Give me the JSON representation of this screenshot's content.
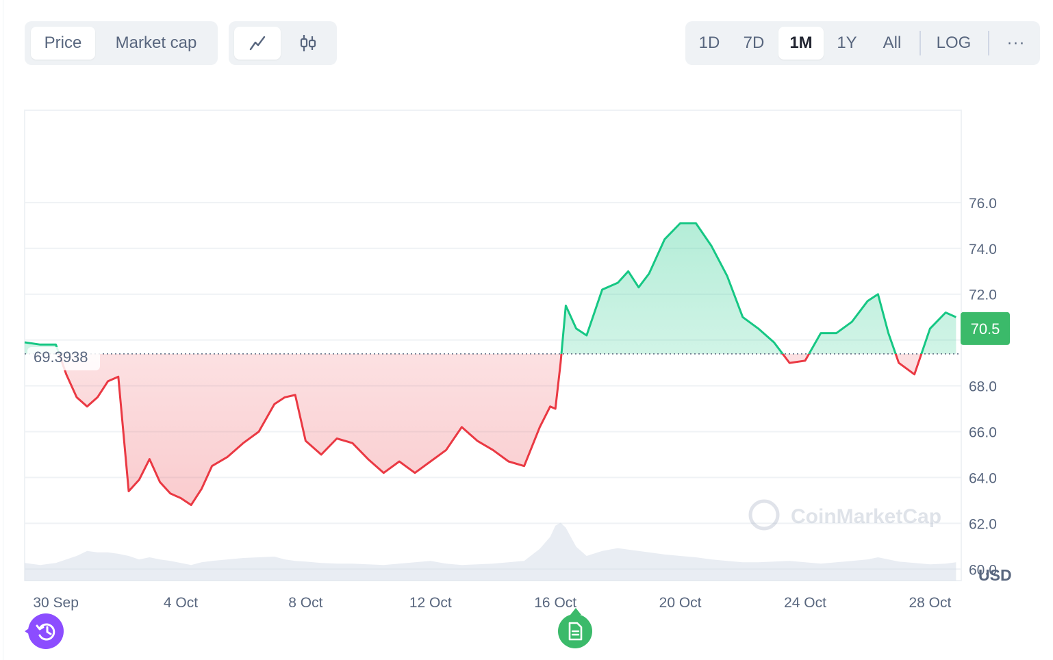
{
  "toolbar": {
    "metric_tabs": [
      {
        "label": "Price",
        "active": true
      },
      {
        "label": "Market cap",
        "active": false
      }
    ],
    "chart_type_icons": [
      "line-chart-icon",
      "candlestick-icon"
    ],
    "range_tabs": [
      {
        "label": "1D",
        "active": false
      },
      {
        "label": "7D",
        "active": false
      },
      {
        "label": "1M",
        "active": true
      },
      {
        "label": "1Y",
        "active": false
      },
      {
        "label": "All",
        "active": false
      }
    ],
    "log_label": "LOG",
    "more_label": "···"
  },
  "colors": {
    "up": "#16c784",
    "down": "#ea3943",
    "grid": "#eff2f5",
    "axis_text": "#58667e",
    "badge": "#3bba6a",
    "history_button": "#8c4dff",
    "event_button": "#3bba6a"
  },
  "buttons": {
    "history_icon": "history-icon",
    "event_icon": "document-icon"
  },
  "watermark": "CoinMarketCap",
  "chart_data": {
    "type": "area",
    "currency_label": "USD",
    "baseline_value": 69.3938,
    "baseline_label": "69.3938",
    "current_price_label": "70.5",
    "current_price": 70.5,
    "ylim": [
      59.5,
      80
    ],
    "y_ticks": [
      60,
      62,
      64,
      66,
      68,
      70,
      72,
      74,
      76
    ],
    "y_tick_labels": [
      "60.0",
      "62.0",
      "64.0",
      "66.0",
      "68.0",
      "",
      "72.0",
      "74.0",
      "76.0"
    ],
    "xlim": [
      "2024-09-29",
      "2024-10-29"
    ],
    "x_tick_labels": [
      "30 Sep",
      "4 Oct",
      "8 Oct",
      "12 Oct",
      "16 Oct",
      "20 Oct",
      "24 Oct",
      "28 Oct"
    ],
    "x_tick_dates": [
      "2024-09-30",
      "2024-10-04",
      "2024-10-08",
      "2024-10-12",
      "2024-10-16",
      "2024-10-20",
      "2024-10-24",
      "2024-10-28"
    ],
    "grid": true,
    "x": [
      "2024-09-29 00:00",
      "2024-09-29 12:00",
      "2024-09-30 00:00",
      "2024-09-30 08:00",
      "2024-09-30 16:00",
      "2024-10-01 00:00",
      "2024-10-01 08:00",
      "2024-10-01 16:00",
      "2024-10-02 00:00",
      "2024-10-02 08:00",
      "2024-10-02 16:00",
      "2024-10-03 00:00",
      "2024-10-03 08:00",
      "2024-10-03 16:00",
      "2024-10-04 00:00",
      "2024-10-04 08:00",
      "2024-10-04 16:00",
      "2024-10-05 00:00",
      "2024-10-05 12:00",
      "2024-10-06 00:00",
      "2024-10-06 12:00",
      "2024-10-07 00:00",
      "2024-10-07 08:00",
      "2024-10-07 16:00",
      "2024-10-08 00:00",
      "2024-10-08 12:00",
      "2024-10-09 00:00",
      "2024-10-09 12:00",
      "2024-10-10 00:00",
      "2024-10-10 12:00",
      "2024-10-11 00:00",
      "2024-10-11 12:00",
      "2024-10-12 00:00",
      "2024-10-12 12:00",
      "2024-10-13 00:00",
      "2024-10-13 12:00",
      "2024-10-14 00:00",
      "2024-10-14 12:00",
      "2024-10-15 00:00",
      "2024-10-15 12:00",
      "2024-10-15 20:00",
      "2024-10-16 00:00",
      "2024-10-16 04:00",
      "2024-10-16 08:00",
      "2024-10-16 16:00",
      "2024-10-17 00:00",
      "2024-10-17 12:00",
      "2024-10-18 00:00",
      "2024-10-18 08:00",
      "2024-10-18 16:00",
      "2024-10-19 00:00",
      "2024-10-19 12:00",
      "2024-10-20 00:00",
      "2024-10-20 12:00",
      "2024-10-21 00:00",
      "2024-10-21 12:00",
      "2024-10-22 00:00",
      "2024-10-22 12:00",
      "2024-10-23 00:00",
      "2024-10-23 12:00",
      "2024-10-24 00:00",
      "2024-10-24 12:00",
      "2024-10-25 00:00",
      "2024-10-25 12:00",
      "2024-10-26 00:00",
      "2024-10-26 08:00",
      "2024-10-26 16:00",
      "2024-10-27 00:00",
      "2024-10-27 12:00",
      "2024-10-28 00:00",
      "2024-10-28 12:00",
      "2024-10-28 20:00"
    ],
    "series": [
      {
        "values": [
          69.9,
          69.8,
          69.8,
          68.5,
          67.5,
          67.1,
          67.5,
          68.2,
          68.4,
          63.4,
          63.9,
          64.8,
          63.8,
          63.3,
          63.1,
          62.8,
          63.5,
          64.5,
          64.9,
          65.5,
          66.0,
          67.2,
          67.5,
          67.6,
          65.6,
          65.0,
          65.7,
          65.5,
          64.8,
          64.2,
          64.7,
          64.2,
          64.7,
          65.2,
          66.2,
          65.6,
          65.2,
          64.7,
          64.5,
          66.2,
          67.1,
          67.0,
          69.0,
          71.5,
          70.5,
          70.2,
          72.2,
          72.5,
          73.0,
          72.3,
          72.9,
          74.4,
          75.1,
          75.1,
          74.1,
          72.8,
          71.0,
          70.5,
          69.9,
          69.0,
          69.1,
          70.3,
          70.3,
          70.8,
          71.7,
          72.0,
          70.3,
          69.0,
          68.5,
          70.5,
          71.2,
          71.0
        ]
      }
    ],
    "volume": [
      0.25,
      0.22,
      0.25,
      0.3,
      0.35,
      0.42,
      0.4,
      0.4,
      0.38,
      0.35,
      0.3,
      0.33,
      0.3,
      0.28,
      0.25,
      0.22,
      0.26,
      0.28,
      0.3,
      0.32,
      0.33,
      0.34,
      0.3,
      0.28,
      0.27,
      0.25,
      0.24,
      0.24,
      0.23,
      0.22,
      0.24,
      0.26,
      0.28,
      0.24,
      0.22,
      0.23,
      0.24,
      0.26,
      0.28,
      0.45,
      0.62,
      0.78,
      0.82,
      0.75,
      0.48,
      0.35,
      0.42,
      0.46,
      0.44,
      0.42,
      0.4,
      0.37,
      0.35,
      0.33,
      0.3,
      0.28,
      0.26,
      0.26,
      0.27,
      0.28,
      0.26,
      0.24,
      0.26,
      0.28,
      0.3,
      0.33,
      0.3,
      0.27,
      0.25,
      0.23,
      0.24,
      0.26
    ]
  }
}
